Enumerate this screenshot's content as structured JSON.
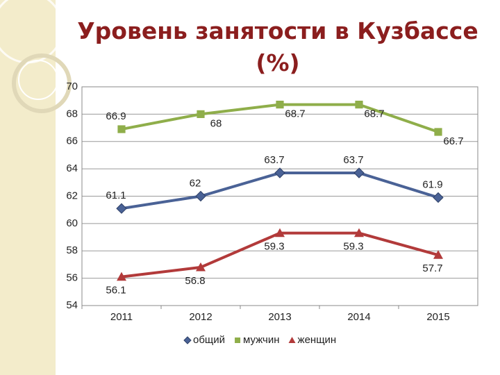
{
  "chart_data": {
    "type": "line",
    "title": "Уровень занятости в Кузбассе (%)",
    "categories": [
      "2011",
      "2012",
      "2013",
      "2014",
      "2015"
    ],
    "series": [
      {
        "name": "общий",
        "color": "#4a6296",
        "marker": "diamond",
        "values": [
          61.1,
          62,
          63.7,
          63.7,
          61.9
        ]
      },
      {
        "name": "мужчин",
        "color": "#8fae4a",
        "marker": "square",
        "values": [
          66.9,
          68,
          68.7,
          68.7,
          66.7
        ]
      },
      {
        "name": "женщин",
        "color": "#b23a3a",
        "marker": "triangle",
        "values": [
          56.1,
          56.8,
          59.3,
          59.3,
          57.7
        ]
      }
    ],
    "ylim": [
      54,
      70
    ],
    "yticks": [
      54,
      56,
      58,
      60,
      62,
      64,
      66,
      68,
      70
    ],
    "grid": true,
    "legend": "bottom"
  }
}
